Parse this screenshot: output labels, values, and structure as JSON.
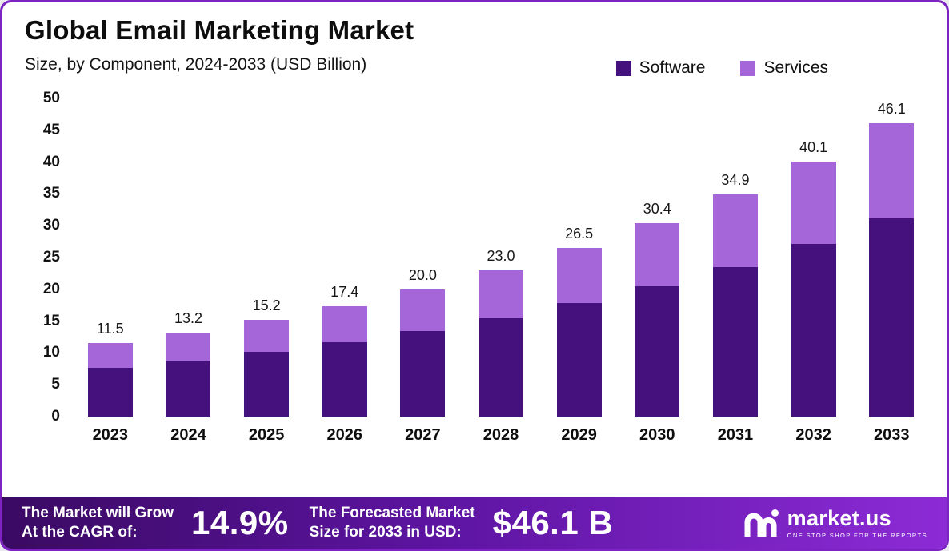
{
  "title": "Global Email Marketing Market",
  "subtitle": "Size, by Component, 2024-2033 (USD Billion)",
  "legend": [
    {
      "label": "Software",
      "color": "#45117c"
    },
    {
      "label": "Services",
      "color": "#a566d9"
    }
  ],
  "chart_data": {
    "type": "bar",
    "stacked": true,
    "title": "Global Email Marketing Market",
    "subtitle": "Size, by Component, 2024-2033 (USD Billion)",
    "categories": [
      "2023",
      "2024",
      "2025",
      "2026",
      "2027",
      "2028",
      "2029",
      "2030",
      "2031",
      "2032",
      "2033"
    ],
    "series": [
      {
        "name": "Software",
        "color": "#45117c",
        "values": [
          7.7,
          8.8,
          10.2,
          11.7,
          13.5,
          15.5,
          17.9,
          20.5,
          23.5,
          27.1,
          31.1
        ]
      },
      {
        "name": "Services",
        "color": "#a566d9",
        "values": [
          3.8,
          4.4,
          5.0,
          5.7,
          6.5,
          7.5,
          8.6,
          9.9,
          11.4,
          13.0,
          15.0
        ]
      }
    ],
    "totals": [
      "11.5",
      "13.2",
      "15.2",
      "17.4",
      "20.0",
      "23.0",
      "26.5",
      "30.4",
      "34.9",
      "40.1",
      "46.1"
    ],
    "ylabel": "",
    "xlabel": "",
    "ylim": [
      0,
      50
    ],
    "yticks": [
      0,
      5,
      10,
      15,
      20,
      25,
      30,
      35,
      40,
      45,
      50
    ],
    "grid": false,
    "legend_position": "top-right"
  },
  "footer": {
    "cagr_label_line1": "The Market will Grow",
    "cagr_label_line2": "At the CAGR of:",
    "cagr_value": "14.9%",
    "forecast_label_line1": "The Forecasted Market",
    "forecast_label_line2": "Size for 2033 in USD:",
    "forecast_value": "$46.1 B",
    "brand": "market.us",
    "brand_tagline": "One Stop Shop For The Reports"
  }
}
